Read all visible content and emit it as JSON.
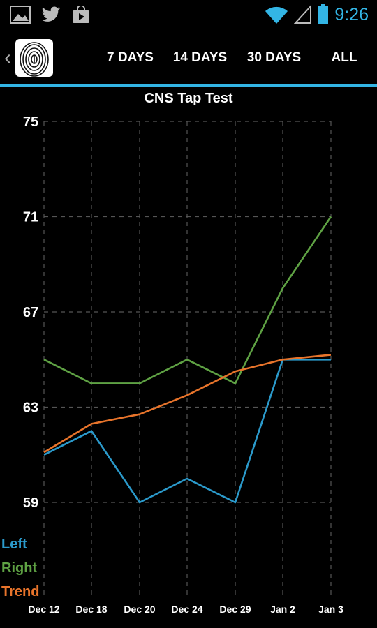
{
  "status_bar": {
    "time": "9:26",
    "icons_left": [
      "gallery-icon",
      "twitter-icon",
      "store-bag-icon"
    ],
    "icons_right": [
      "wifi-icon",
      "signal-icon",
      "battery-icon"
    ]
  },
  "action_bar": {
    "tabs": [
      "7 DAYS",
      "14 DAYS",
      "30 DAYS",
      "ALL"
    ]
  },
  "colors": {
    "accent": "#33b5e5",
    "left": "#2b9acb",
    "right": "#5fa244",
    "trend": "#e8742b"
  },
  "chart_data": {
    "type": "line",
    "title": "CNS Tap Test",
    "categories": [
      "Dec 12",
      "Dec 18",
      "Dec 20",
      "Dec 24",
      "Dec 29",
      "Jan 2",
      "Jan 3"
    ],
    "yticks": [
      75,
      71,
      67,
      63,
      59
    ],
    "ylim": [
      55,
      75
    ],
    "grid": true,
    "legend_position": "bottom-left",
    "series": [
      {
        "name": "Left",
        "color": "#2b9acb",
        "values": [
          61,
          62,
          59,
          60,
          59,
          65,
          65
        ]
      },
      {
        "name": "Right",
        "color": "#5fa244",
        "values": [
          65,
          64,
          64,
          65,
          64,
          68,
          71
        ]
      },
      {
        "name": "Trend",
        "color": "#e8742b",
        "values": [
          61.1,
          62.3,
          62.7,
          63.5,
          64.5,
          65,
          65.2
        ]
      }
    ]
  }
}
